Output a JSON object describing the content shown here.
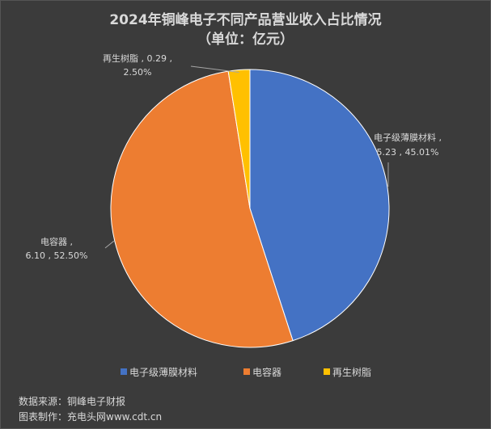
{
  "title_line1": "2024年铜峰电子不同产品营业收入占比情况",
  "title_line2": "（单位：亿元）",
  "chart_data": {
    "type": "pie",
    "title": "2024年铜峰电子不同产品营业收入占比情况（单位：亿元）",
    "unit": "亿元",
    "slices": [
      {
        "name": "电子级薄膜材料",
        "value": 5.23,
        "percent": 45.01,
        "value_text": "5.23",
        "percent_text": "45.01%",
        "color": "#4472c4"
      },
      {
        "name": "电容器",
        "value": 6.1,
        "percent": 52.5,
        "value_text": "6.10",
        "percent_text": "52.50%",
        "color": "#ed7d31"
      },
      {
        "name": "再生树脂",
        "value": 0.29,
        "percent": 2.5,
        "value_text": "0.29",
        "percent_text": "2.50%",
        "color": "#ffc000"
      }
    ],
    "legend": [
      "电子级薄膜材料",
      "电容器",
      "再生树脂"
    ],
    "legend_position": "bottom"
  },
  "footer": {
    "source": "数据来源：铜峰电子财报",
    "maker": "图表制作：充电头网www.cdt.cn"
  }
}
